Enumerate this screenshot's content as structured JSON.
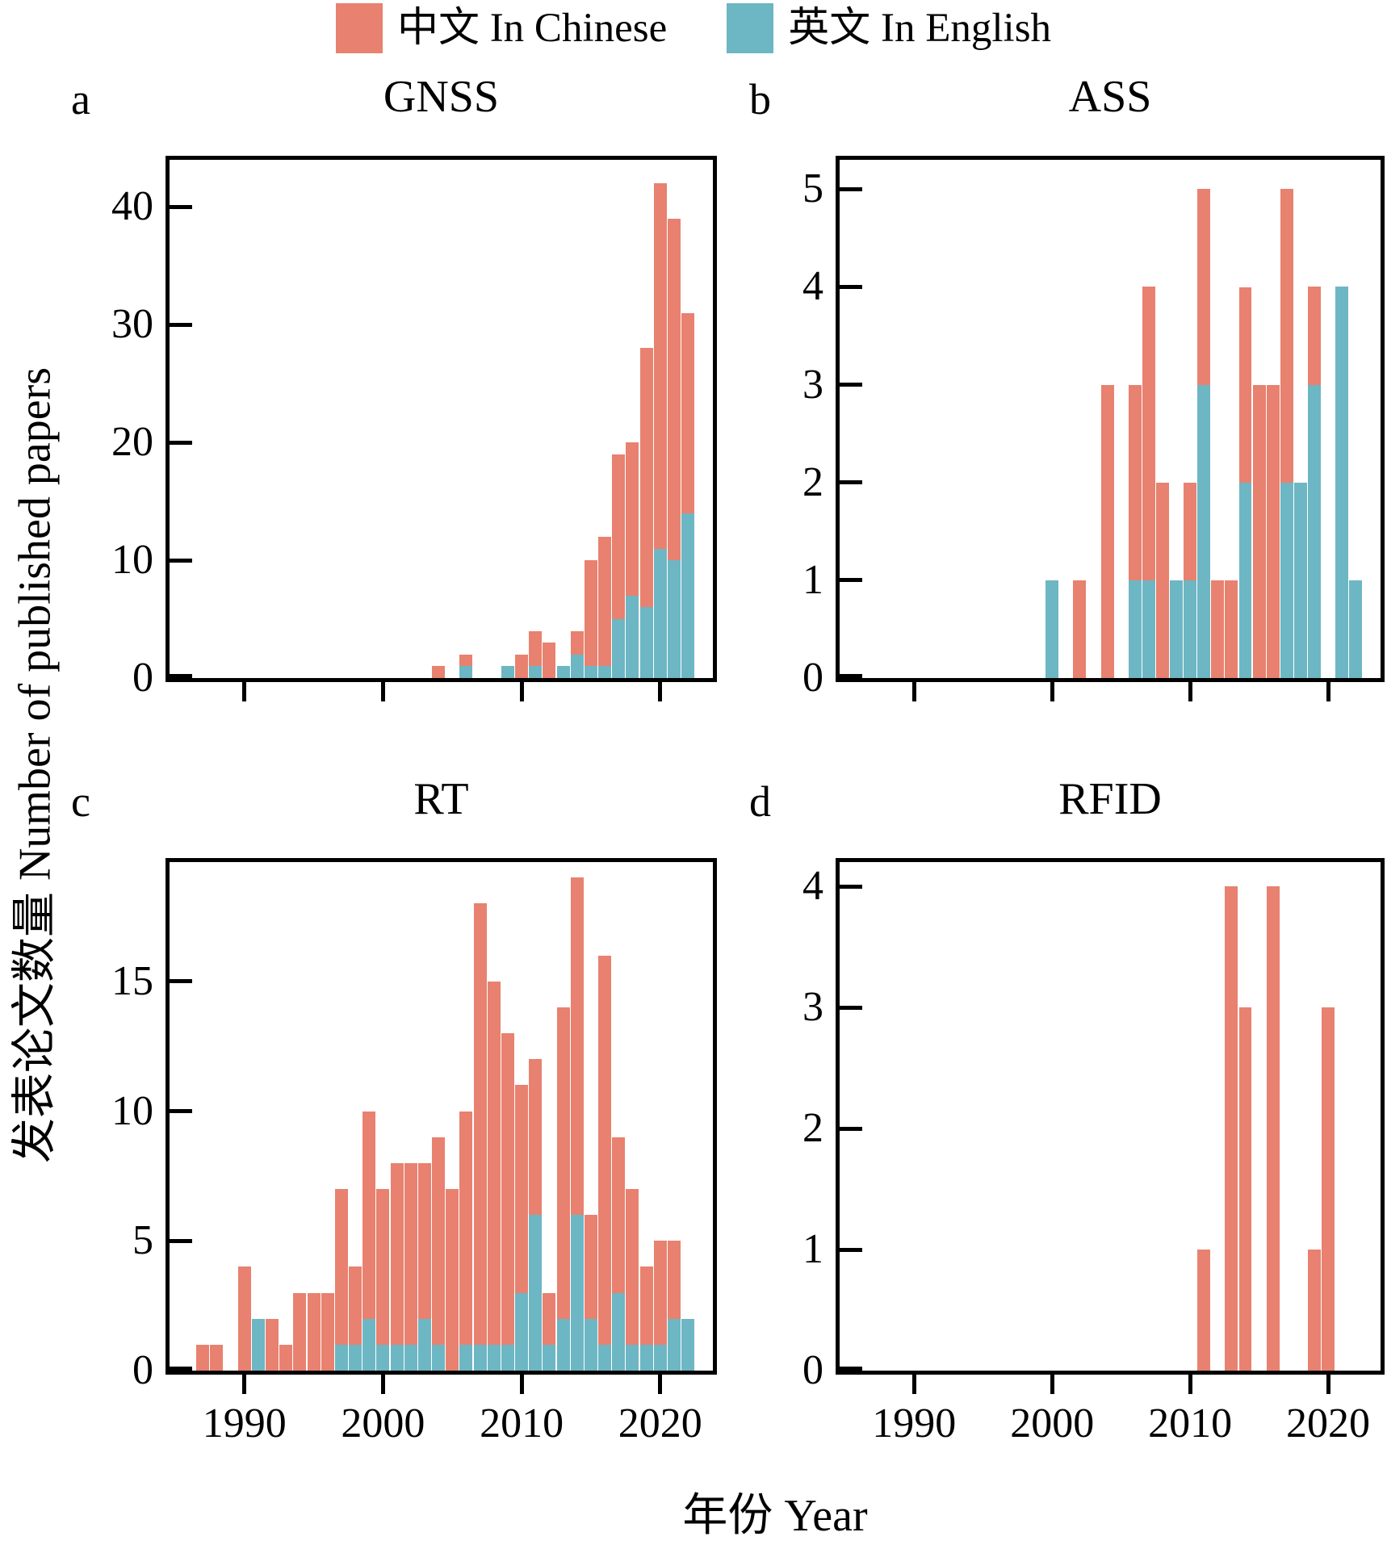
{
  "legend": {
    "items": [
      {
        "key": "chinese",
        "label": "中文 In Chinese",
        "color": "#E8816F"
      },
      {
        "key": "english",
        "label": "英文 In English",
        "color": "#6DB6C3"
      }
    ]
  },
  "axes": {
    "x_label": "年份 Year",
    "y_label": "发表论文数量 Number of published papers",
    "x_ticks": [
      1990,
      2000,
      2010,
      2020
    ],
    "xlim": [
      1984.6,
      2023.8
    ]
  },
  "colors": {
    "chinese": "#E8816F",
    "english": "#6DB6C3",
    "axis": "#000000",
    "background": "#ffffff"
  },
  "chart_data": [
    {
      "id": "gnss",
      "letter": "a",
      "title": "GNSS",
      "type": "bar",
      "stacked": true,
      "legend_position": "top",
      "grid": false,
      "xlim": [
        1984.6,
        2023.8
      ],
      "ylim": [
        0,
        44
      ],
      "y_ticks": [
        0,
        10,
        20,
        30,
        40
      ],
      "categories": [
        2004,
        2006,
        2009,
        2010,
        2011,
        2012,
        2013,
        2014,
        2015,
        2016,
        2017,
        2018,
        2019,
        2020,
        2021,
        2022
      ],
      "series": [
        {
          "name": "中文 In Chinese",
          "values": [
            1,
            1,
            0,
            2,
            3,
            3,
            0,
            2,
            9,
            11,
            14,
            13,
            22,
            31,
            29,
            17
          ]
        },
        {
          "name": "英文 In English",
          "values": [
            0,
            1,
            1,
            0,
            1,
            0,
            1,
            2,
            1,
            1,
            5,
            7,
            6,
            11,
            10,
            14
          ]
        }
      ]
    },
    {
      "id": "ass",
      "letter": "b",
      "title": "ASS",
      "type": "bar",
      "stacked": true,
      "legend_position": "top",
      "grid": false,
      "xlim": [
        1984.6,
        2023.8
      ],
      "ylim": [
        0,
        5.3
      ],
      "y_ticks": [
        0,
        1,
        2,
        3,
        4,
        5
      ],
      "categories": [
        2000,
        2002,
        2004,
        2006,
        2007,
        2008,
        2009,
        2010,
        2011,
        2012,
        2013,
        2014,
        2015,
        2016,
        2017,
        2018,
        2019,
        2021,
        2022
      ],
      "series": [
        {
          "name": "中文 In Chinese",
          "values": [
            0,
            1,
            3,
            2,
            3,
            2,
            0,
            1,
            2,
            1,
            1,
            2,
            3,
            3,
            3,
            0,
            1,
            0,
            0
          ]
        },
        {
          "name": "英文 In English",
          "values": [
            1,
            0,
            0,
            1,
            1,
            0,
            1,
            1,
            3,
            0,
            0,
            2,
            0,
            0,
            2,
            2,
            3,
            4,
            1
          ]
        }
      ]
    },
    {
      "id": "rt",
      "letter": "c",
      "title": "RT",
      "type": "bar",
      "stacked": true,
      "legend_position": "top",
      "grid": false,
      "xlim": [
        1984.6,
        2023.8
      ],
      "ylim": [
        0,
        19.6
      ],
      "y_ticks": [
        0,
        5,
        10,
        15
      ],
      "categories": [
        1987,
        1988,
        1990,
        1991,
        1992,
        1993,
        1994,
        1995,
        1996,
        1997,
        1998,
        1999,
        2000,
        2001,
        2002,
        2003,
        2004,
        2005,
        2006,
        2007,
        2008,
        2009,
        2010,
        2011,
        2012,
        2013,
        2014,
        2015,
        2016,
        2017,
        2018,
        2019,
        2020,
        2021,
        2022
      ],
      "series": [
        {
          "name": "中文 In Chinese",
          "values": [
            1,
            1,
            4,
            0,
            2,
            1,
            3,
            3,
            3,
            6,
            3,
            8,
            6,
            7,
            7,
            6,
            8,
            7,
            9,
            17,
            14,
            12,
            8,
            6,
            2,
            12,
            13,
            4,
            15,
            6,
            6,
            3,
            4,
            3,
            0
          ]
        },
        {
          "name": "英文 In English",
          "values": [
            0,
            0,
            0,
            2,
            0,
            0,
            0,
            0,
            0,
            1,
            1,
            2,
            1,
            1,
            1,
            2,
            1,
            0,
            1,
            1,
            1,
            1,
            3,
            6,
            1,
            2,
            6,
            2,
            1,
            3,
            1,
            1,
            1,
            2,
            2
          ]
        }
      ]
    },
    {
      "id": "rfid",
      "letter": "d",
      "title": "RFID",
      "type": "bar",
      "stacked": true,
      "legend_position": "top",
      "grid": false,
      "xlim": [
        1984.6,
        2023.8
      ],
      "ylim": [
        0,
        4.2
      ],
      "y_ticks": [
        0,
        1,
        2,
        3,
        4
      ],
      "categories": [
        2011,
        2013,
        2014,
        2016,
        2019,
        2020
      ],
      "series": [
        {
          "name": "中文 In Chinese",
          "values": [
            1,
            4,
            3,
            4,
            1,
            3
          ]
        },
        {
          "name": "英文 In English",
          "values": [
            0,
            0,
            0,
            0,
            0,
            0
          ]
        }
      ]
    }
  ],
  "layout_note": "2x2 stacked bar histograms of published papers per year"
}
